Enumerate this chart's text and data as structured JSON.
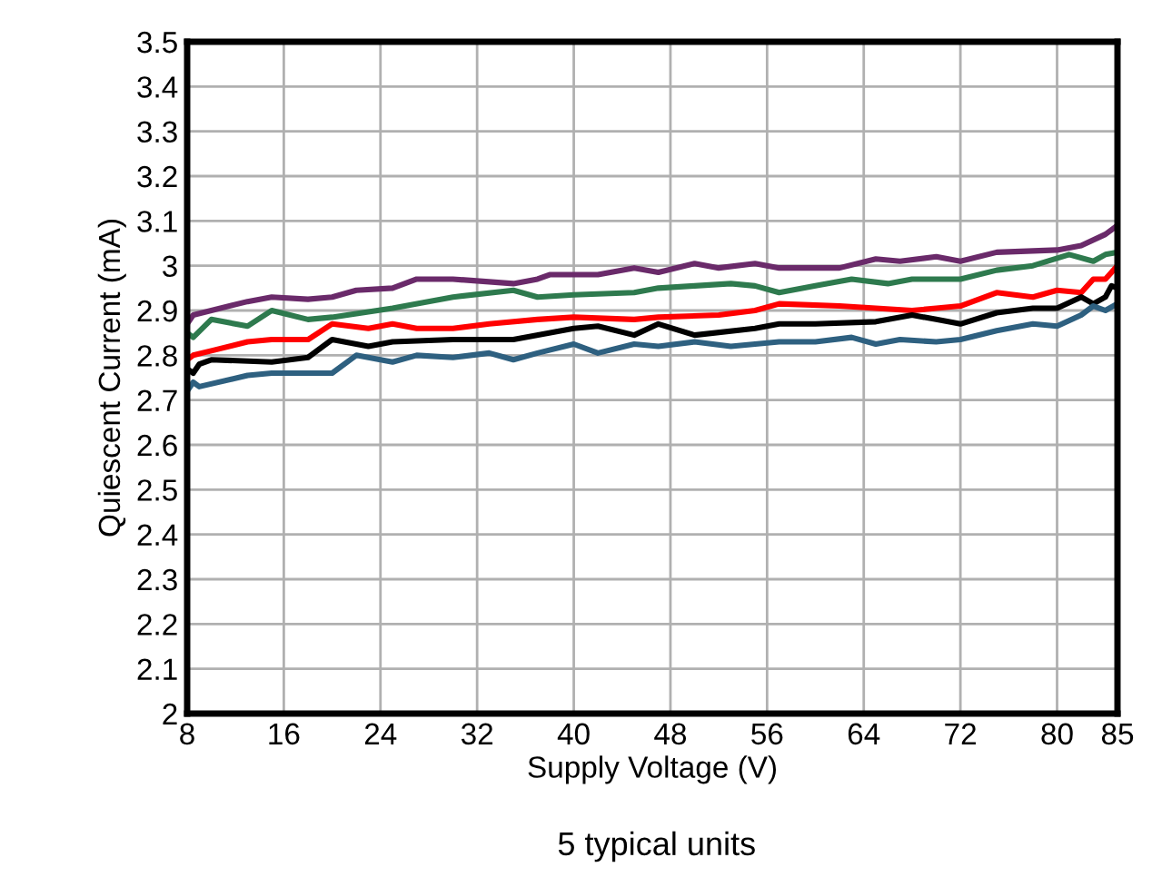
{
  "chart_data": {
    "type": "line",
    "xlabel": "Supply Voltage (V)",
    "ylabel": "Quiescent Current (mA)",
    "annotations": [
      "5 typical units"
    ],
    "xlim": [
      8,
      85
    ],
    "xticks": [
      8,
      16,
      24,
      32,
      40,
      48,
      56,
      64,
      72,
      80,
      85
    ],
    "ylim": [
      2,
      3.5
    ],
    "yticks": [
      2,
      2.1,
      2.2,
      2.3,
      2.4,
      2.5,
      2.6,
      2.7,
      2.8,
      2.9,
      3,
      3.1,
      3.2,
      3.3,
      3.4,
      3.5
    ],
    "grid": true,
    "series": [
      {
        "color": "#6a2a6a",
        "x": [
          8,
          8.5,
          10,
          13,
          15,
          18,
          20,
          22,
          25,
          27,
          30,
          35,
          37,
          38,
          42,
          45,
          47,
          50,
          52,
          55,
          57,
          62,
          65,
          67,
          70,
          72,
          75,
          80,
          82,
          84,
          85
        ],
        "values": [
          2.87,
          2.89,
          2.9,
          2.92,
          2.93,
          2.925,
          2.93,
          2.945,
          2.95,
          2.97,
          2.97,
          2.96,
          2.97,
          2.98,
          2.98,
          2.995,
          2.985,
          3.005,
          2.995,
          3.005,
          2.995,
          2.995,
          3.015,
          3.01,
          3.02,
          3.01,
          3.03,
          3.035,
          3.045,
          3.07,
          3.09
        ]
      },
      {
        "color": "#2e7a4e",
        "x": [
          8,
          8.5,
          10,
          13,
          15,
          18,
          20,
          25,
          30,
          35,
          37,
          40,
          45,
          47,
          50,
          53,
          55,
          57,
          60,
          63,
          66,
          68,
          72,
          75,
          78,
          81,
          83,
          84,
          85
        ],
        "values": [
          2.85,
          2.84,
          2.88,
          2.865,
          2.9,
          2.88,
          2.885,
          2.905,
          2.93,
          2.945,
          2.93,
          2.935,
          2.94,
          2.95,
          2.955,
          2.96,
          2.955,
          2.94,
          2.955,
          2.97,
          2.96,
          2.97,
          2.97,
          2.99,
          3.0,
          3.025,
          3.01,
          3.025,
          3.03
        ]
      },
      {
        "color": "#ff0000",
        "x": [
          8,
          8.5,
          10,
          13,
          15,
          18,
          20,
          23,
          25,
          27,
          30,
          33,
          37,
          40,
          45,
          47,
          52,
          55,
          57,
          62,
          65,
          68,
          70,
          72,
          75,
          78,
          80,
          82,
          83,
          84,
          85
        ],
        "values": [
          2.79,
          2.8,
          2.81,
          2.83,
          2.835,
          2.835,
          2.87,
          2.86,
          2.87,
          2.86,
          2.86,
          2.87,
          2.88,
          2.885,
          2.88,
          2.885,
          2.89,
          2.9,
          2.915,
          2.91,
          2.905,
          2.9,
          2.905,
          2.91,
          2.94,
          2.93,
          2.945,
          2.94,
          2.97,
          2.97,
          3.0
        ]
      },
      {
        "color": "#000000",
        "x": [
          8,
          8.5,
          9,
          10,
          15,
          18,
          20,
          23,
          25,
          30,
          35,
          40,
          42,
          45,
          47,
          50,
          55,
          57,
          60,
          65,
          68,
          70,
          72,
          75,
          78,
          80,
          82,
          83,
          84,
          84.5,
          85
        ],
        "values": [
          2.77,
          2.76,
          2.78,
          2.79,
          2.785,
          2.795,
          2.835,
          2.82,
          2.83,
          2.835,
          2.835,
          2.86,
          2.865,
          2.845,
          2.87,
          2.845,
          2.86,
          2.87,
          2.87,
          2.875,
          2.89,
          2.88,
          2.87,
          2.895,
          2.905,
          2.905,
          2.93,
          2.915,
          2.93,
          2.955,
          2.95
        ]
      },
      {
        "color": "#2e6080",
        "x": [
          8,
          8.5,
          9,
          13,
          15,
          20,
          22,
          25,
          27,
          30,
          33,
          35,
          37,
          40,
          42,
          45,
          47,
          50,
          53,
          57,
          60,
          63,
          65,
          67,
          70,
          72,
          75,
          78,
          80,
          82,
          83,
          84,
          85
        ],
        "values": [
          2.72,
          2.74,
          2.73,
          2.755,
          2.76,
          2.76,
          2.8,
          2.785,
          2.8,
          2.795,
          2.805,
          2.79,
          2.805,
          2.825,
          2.805,
          2.825,
          2.82,
          2.83,
          2.82,
          2.83,
          2.83,
          2.84,
          2.825,
          2.835,
          2.83,
          2.835,
          2.855,
          2.87,
          2.865,
          2.89,
          2.91,
          2.9,
          2.915
        ]
      }
    ]
  }
}
